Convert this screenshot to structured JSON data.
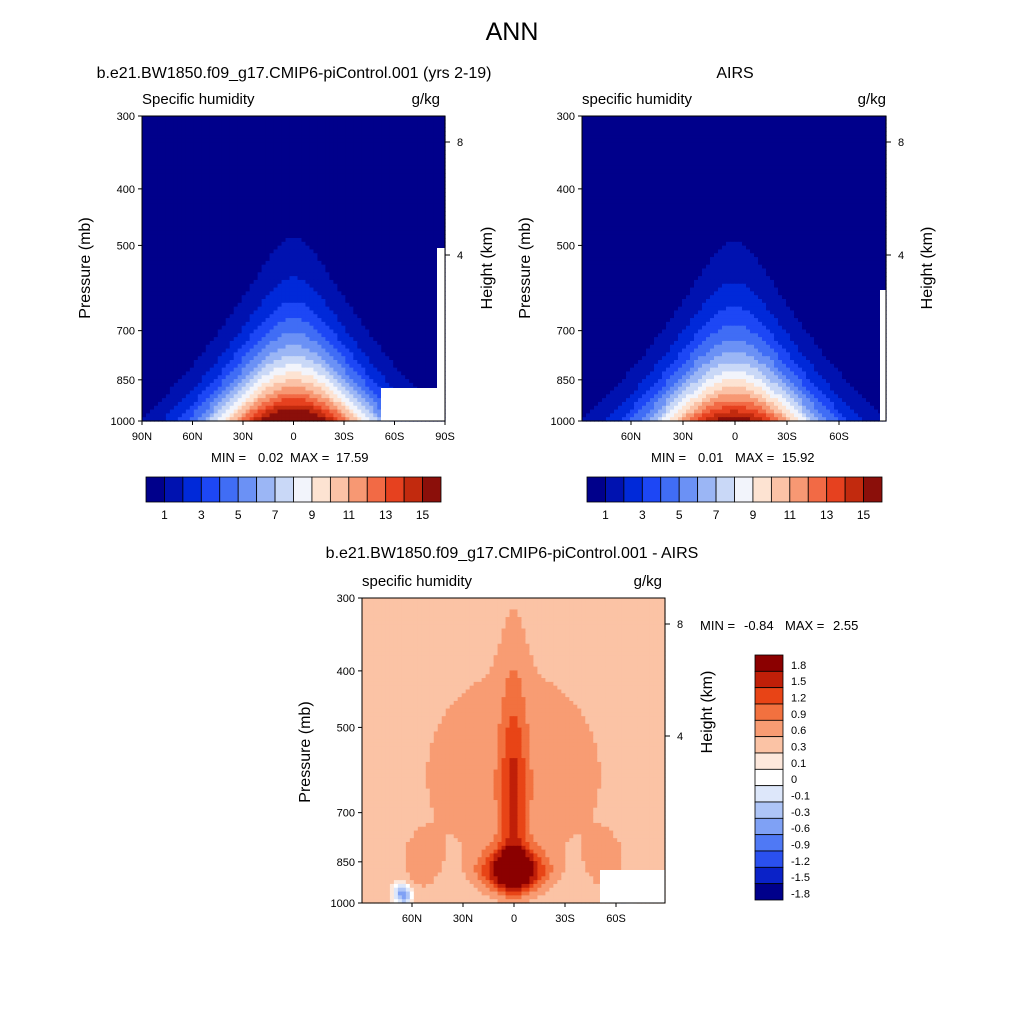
{
  "page_title": "ANN",
  "colorscale_abs": [
    "#00008b",
    "#0012b0",
    "#0029d9",
    "#1d47f5",
    "#406df5",
    "#6b91f5",
    "#9bb6f5",
    "#c9d8f7",
    "#f2f4fb",
    "#fde3d2",
    "#fbc2a6",
    "#f79873",
    "#f26a45",
    "#e6411f",
    "#c22a0e",
    "#8b0f0a"
  ],
  "colorscale_diff": [
    "#00008b",
    "#0a22c8",
    "#2a50f0",
    "#4f79f5",
    "#7fa1f5",
    "#aec5f7",
    "#dde7fa",
    "#ffffff",
    "#fde8dc",
    "#fbc3a5",
    "#f89c73",
    "#f2713f",
    "#e84416",
    "#c01f08",
    "#8b0000"
  ],
  "chart_data": [
    {
      "type": "heatmap",
      "panel": "model",
      "title": "b.e21.BW1850.f09_g17.CMIP6-piControl.001 (yrs 2-19)",
      "left_label": "Specific humidity",
      "units": "g/kg",
      "ylabel": "Pressure (mb)",
      "y2label": "Height (km)",
      "x_tick_labels": [
        "90N",
        "60N",
        "30N",
        "0",
        "30S",
        "60S",
        "90S"
      ],
      "y_tick_labels": [
        "300",
        "400",
        "500",
        "700",
        "850",
        "1000"
      ],
      "y2_tick_labels": [
        "8",
        "4"
      ],
      "min_label": "MIN =",
      "min_value": "0.02",
      "max_label": "MAX =",
      "max_value": "17.59",
      "peak": 17.59,
      "colorbar_labels": [
        "1",
        "3",
        "5",
        "7",
        "9",
        "11",
        "13",
        "15"
      ]
    },
    {
      "type": "heatmap",
      "panel": "obs",
      "title": "AIRS",
      "left_label": "specific humidity",
      "units": "g/kg",
      "ylabel": "Pressure (mb)",
      "y2label": "Height (km)",
      "x_tick_labels": [
        "60N",
        "30N",
        "0",
        "30S",
        "60S"
      ],
      "y_tick_labels": [
        "300",
        "400",
        "500",
        "700",
        "850",
        "1000"
      ],
      "y2_tick_labels": [
        "8",
        "4"
      ],
      "min_label": "MIN =",
      "min_value": "0.01",
      "max_label": "MAX =",
      "max_value": "15.92",
      "peak": 15.92,
      "colorbar_labels": [
        "1",
        "3",
        "5",
        "7",
        "9",
        "11",
        "13",
        "15"
      ]
    },
    {
      "type": "heatmap",
      "panel": "difference",
      "title": "b.e21.BW1850.f09_g17.CMIP6-piControl.001 - AIRS",
      "left_label": "specific humidity",
      "units": "g/kg",
      "ylabel": "Pressure (mb)",
      "y2label": "Height (km)",
      "x_tick_labels": [
        "60N",
        "30N",
        "0",
        "30S",
        "60S"
      ],
      "y_tick_labels": [
        "300",
        "400",
        "500",
        "700",
        "850",
        "1000"
      ],
      "y2_tick_labels": [
        "8",
        "4"
      ],
      "min_label": "MIN =",
      "min_value": "-0.84",
      "max_label": "MAX =",
      "max_value": "2.55",
      "colorbar_labels": [
        "1.8",
        "1.5",
        "1.2",
        "0.9",
        "0.6",
        "0.3",
        "0.1",
        "0",
        "-0.1",
        "-0.3",
        "-0.6",
        "-0.9",
        "-1.2",
        "-1.5",
        "-1.8"
      ]
    }
  ]
}
